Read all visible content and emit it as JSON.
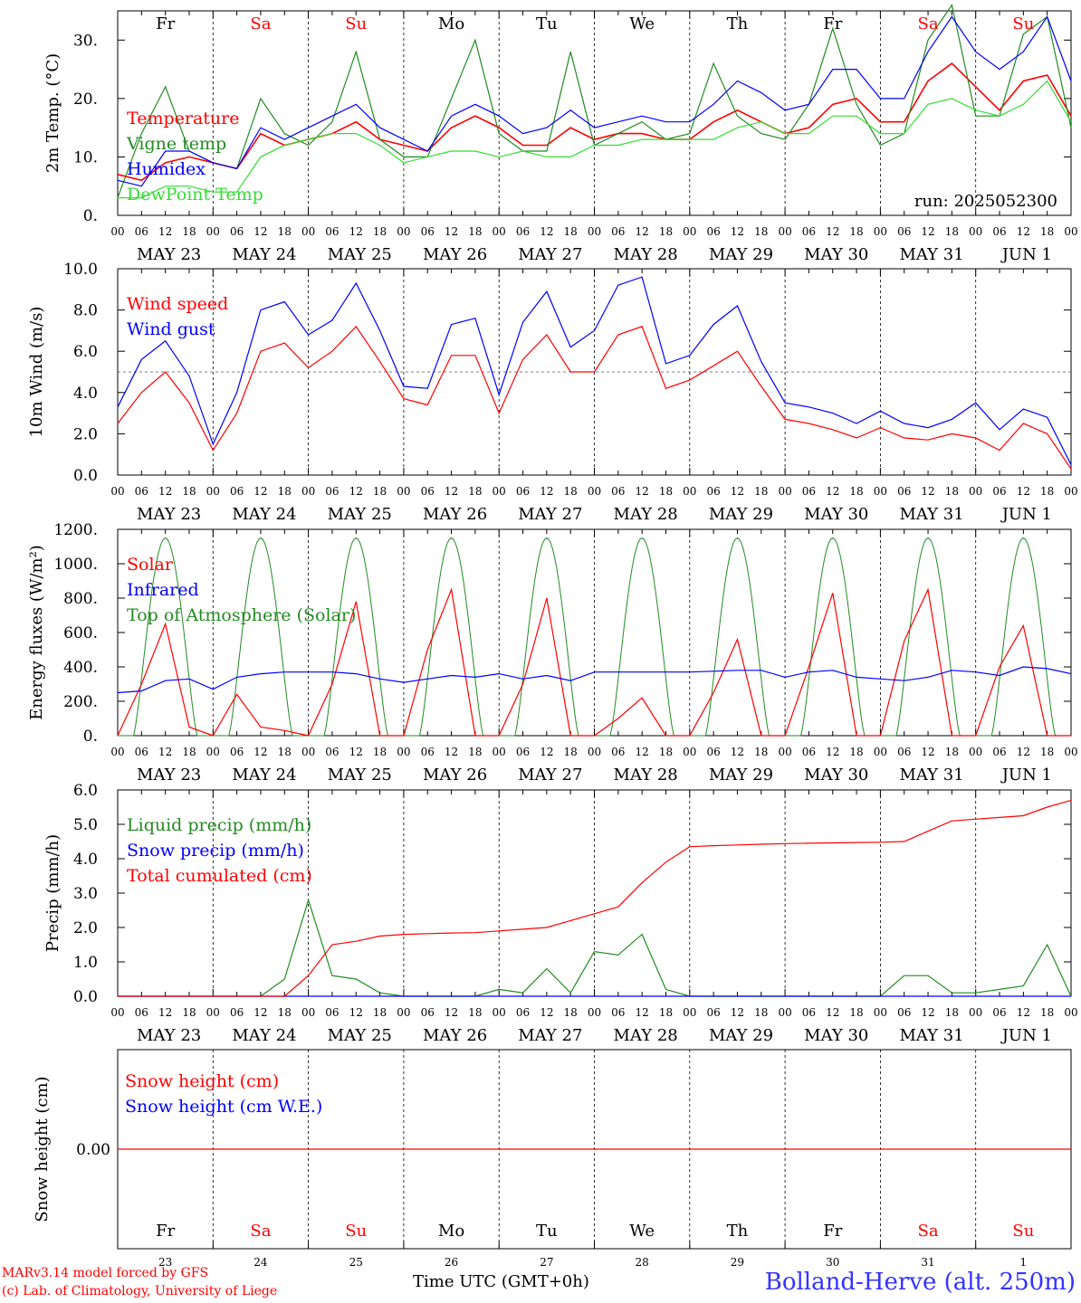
{
  "chart_data": [
    {
      "type": "line",
      "ylabel": "2m Temp. (°C)",
      "ylim": [
        0,
        35
      ],
      "yticks": [
        "0.",
        "10.",
        "20.",
        "30."
      ],
      "run_label": "run: 2025052300",
      "weekday_labels": [
        "Fr",
        "Sa",
        "Su",
        "Mo",
        "Tu",
        "We",
        "Th",
        "Fr",
        "Sa",
        "Su"
      ],
      "x_hours": [
        0,
        6,
        12,
        18,
        24,
        30,
        36,
        42,
        48,
        54,
        60,
        66,
        72,
        78,
        84,
        90,
        96,
        102,
        108,
        114,
        120,
        126,
        132,
        138,
        144,
        150,
        156,
        162,
        168,
        174,
        180,
        186,
        192,
        198,
        204,
        210,
        216,
        222,
        228,
        234,
        240
      ],
      "series": [
        {
          "name": "Temperature",
          "color": "#ff0000",
          "values": [
            7,
            6,
            9,
            10,
            9,
            8,
            14,
            12,
            13,
            14,
            16,
            13,
            12,
            11,
            15,
            17,
            15,
            12,
            12,
            15,
            13,
            14,
            14,
            13,
            13,
            16,
            18,
            16,
            14,
            15,
            19,
            20,
            16,
            16,
            23,
            26,
            22,
            18,
            23,
            24,
            17
          ]
        },
        {
          "name": "Vigne temp",
          "color": "#228b22",
          "values": [
            3,
            14,
            22,
            11,
            9,
            8,
            20,
            14,
            12,
            16,
            28,
            13,
            10,
            10,
            20,
            30,
            14,
            11,
            11,
            28,
            12,
            14,
            16,
            13,
            14,
            26,
            17,
            14,
            13,
            19,
            32,
            19,
            12,
            14,
            30,
            36,
            17,
            17,
            31,
            34,
            15
          ]
        },
        {
          "name": "Humidex",
          "color": "#0000ff",
          "values": [
            6,
            5,
            11,
            11,
            9,
            8,
            15,
            13,
            15,
            17,
            19,
            15,
            13,
            11,
            17,
            19,
            17,
            14,
            15,
            18,
            15,
            16,
            17,
            16,
            16,
            19,
            23,
            21,
            18,
            19,
            25,
            25,
            20,
            20,
            28,
            34,
            28,
            25,
            28,
            34,
            23
          ]
        },
        {
          "name": "DewPoint Temp",
          "color": "#33dd33",
          "values": [
            3,
            3,
            5,
            5,
            4,
            4,
            10,
            12,
            13,
            14,
            14,
            12,
            9,
            10,
            11,
            11,
            10,
            11,
            10,
            10,
            12,
            12,
            13,
            13,
            13,
            13,
            15,
            16,
            14,
            14,
            17,
            17,
            14,
            14,
            19,
            20,
            18,
            17,
            19,
            23,
            16
          ]
        }
      ]
    },
    {
      "type": "line",
      "ylabel": "10m Wind (m/s)",
      "ylim": [
        0,
        10
      ],
      "yticks": [
        "0.0",
        "2.0",
        "4.0",
        "6.0",
        "8.0",
        "10.0"
      ],
      "x_hours": [
        0,
        6,
        12,
        18,
        24,
        30,
        36,
        42,
        48,
        54,
        60,
        66,
        72,
        78,
        84,
        90,
        96,
        102,
        108,
        114,
        120,
        126,
        132,
        138,
        144,
        150,
        156,
        162,
        168,
        174,
        180,
        186,
        192,
        198,
        204,
        210,
        216,
        222,
        228,
        234,
        240
      ],
      "series": [
        {
          "name": "Wind speed",
          "color": "#ff0000",
          "values": [
            2.5,
            4,
            5,
            3.5,
            1.2,
            3,
            6,
            6.4,
            5.2,
            6,
            7.2,
            5.5,
            3.7,
            3.4,
            5.8,
            5.8,
            3,
            5.6,
            6.8,
            5,
            5,
            6.8,
            7.2,
            4.2,
            4.6,
            5.3,
            6,
            4.3,
            2.7,
            2.5,
            2.2,
            1.8,
            2.3,
            1.8,
            1.7,
            2,
            1.8,
            1.2,
            2.5,
            2,
            0.3
          ]
        },
        {
          "name": "Wind gust",
          "color": "#0000ff",
          "values": [
            3.3,
            5.6,
            6.5,
            4.8,
            1.5,
            4,
            8,
            8.4,
            6.8,
            7.5,
            9.3,
            7,
            4.3,
            4.2,
            7.3,
            7.6,
            3.9,
            7.4,
            8.9,
            6.2,
            7,
            9.2,
            9.6,
            5.4,
            5.8,
            7.3,
            8.2,
            5.5,
            3.5,
            3.3,
            3,
            2.5,
            3.1,
            2.5,
            2.3,
            2.7,
            3.5,
            2.2,
            3.2,
            2.8,
            0.5
          ]
        }
      ],
      "reference_line": 5
    },
    {
      "type": "line",
      "ylabel": "Energy fluxes (W/m²)",
      "ylim": [
        0,
        1200
      ],
      "yticks": [
        "0.",
        "200.",
        "400.",
        "600.",
        "800.",
        "1000.",
        "1200."
      ],
      "x_hours": [
        0,
        6,
        12,
        18,
        24,
        30,
        36,
        42,
        48,
        54,
        60,
        66,
        72,
        78,
        84,
        90,
        96,
        102,
        108,
        114,
        120,
        126,
        132,
        138,
        144,
        150,
        156,
        162,
        168,
        174,
        180,
        186,
        192,
        198,
        204,
        210,
        216,
        222,
        228,
        234,
        240
      ],
      "series": [
        {
          "name": "Solar",
          "color": "#ff0000",
          "values": [
            0,
            300,
            650,
            50,
            0,
            240,
            50,
            30,
            0,
            300,
            780,
            0,
            0,
            500,
            850,
            0,
            0,
            300,
            800,
            0,
            0,
            100,
            220,
            0,
            0,
            250,
            560,
            0,
            0,
            400,
            830,
            0,
            0,
            550,
            850,
            0,
            0,
            400,
            640,
            0,
            0
          ]
        },
        {
          "name": "Infrared",
          "color": "#0000ff",
          "values": [
            250,
            260,
            320,
            330,
            270,
            340,
            360,
            370,
            370,
            370,
            360,
            330,
            310,
            330,
            350,
            340,
            360,
            330,
            350,
            320,
            370,
            370,
            370,
            370,
            370,
            375,
            380,
            380,
            340,
            370,
            380,
            340,
            330,
            320,
            340,
            380,
            370,
            350,
            400,
            390,
            360
          ]
        },
        {
          "name": "Top of Atmosphere (Solar)",
          "color": "#228b22",
          "values": []
        }
      ]
    },
    {
      "type": "line",
      "ylabel": "Precip (mm/h)",
      "ylim": [
        0,
        6
      ],
      "yticks": [
        "0.0",
        "1.0",
        "2.0",
        "3.0",
        "4.0",
        "5.0",
        "6.0"
      ],
      "x_hours": [
        0,
        6,
        12,
        18,
        24,
        30,
        36,
        42,
        48,
        54,
        60,
        66,
        72,
        78,
        84,
        90,
        96,
        102,
        108,
        114,
        120,
        126,
        132,
        138,
        144,
        150,
        156,
        162,
        168,
        174,
        180,
        186,
        192,
        198,
        204,
        210,
        216,
        222,
        228,
        234,
        240
      ],
      "series": [
        {
          "name": "Liquid precip (mm/h)",
          "color": "#228b22",
          "values": [
            0,
            0,
            0,
            0,
            0,
            0,
            0,
            0.5,
            2.8,
            0.6,
            0.5,
            0.1,
            0,
            0,
            0,
            0,
            0.2,
            0.1,
            0.8,
            0.1,
            1.3,
            1.2,
            1.8,
            0.2,
            0,
            0,
            0,
            0,
            0,
            0,
            0,
            0,
            0,
            0.6,
            0.6,
            0.1,
            0.1,
            0.2,
            0.3,
            1.5,
            0
          ]
        },
        {
          "name": "Snow precip (mm/h)",
          "color": "#0000ff",
          "values": [
            0,
            0,
            0,
            0,
            0,
            0,
            0,
            0,
            0,
            0,
            0,
            0,
            0,
            0,
            0,
            0,
            0,
            0,
            0,
            0,
            0,
            0,
            0,
            0,
            0,
            0,
            0,
            0,
            0,
            0,
            0,
            0,
            0,
            0,
            0,
            0,
            0,
            0,
            0,
            0,
            0
          ]
        },
        {
          "name": "Total cumulated (cm)",
          "color": "#ff0000",
          "values": [
            0,
            0,
            0,
            0,
            0,
            0,
            0,
            0,
            0.6,
            1.5,
            1.6,
            1.75,
            1.8,
            1.82,
            1.84,
            1.85,
            1.9,
            1.95,
            2.0,
            2.2,
            2.4,
            2.6,
            3.3,
            3.9,
            4.35,
            4.38,
            4.4,
            4.42,
            4.44,
            4.45,
            4.46,
            4.47,
            4.48,
            4.5,
            4.8,
            5.1,
            5.15,
            5.2,
            5.25,
            5.5,
            5.7
          ]
        }
      ]
    },
    {
      "type": "line",
      "ylabel": "Snow height (cm)",
      "yticks": [
        "0.00"
      ],
      "weekday_labels": [
        "Fr",
        "Sa",
        "Su",
        "Mo",
        "Tu",
        "We",
        "Th",
        "Fr",
        "Sa",
        "Su"
      ],
      "day_numbers": [
        "23",
        "24",
        "25",
        "26",
        "27",
        "28",
        "29",
        "30",
        "31",
        "1"
      ],
      "series": [
        {
          "name": "Snow height (cm)",
          "color": "#ff0000",
          "values": [
            0,
            0
          ]
        },
        {
          "name": "Snow height (cm W.E.)",
          "color": "#0000ff",
          "values": []
        }
      ]
    }
  ],
  "x_axis": {
    "hour_ticks": [
      "00",
      "06",
      "12",
      "18"
    ],
    "day_labels": [
      "MAY 23",
      "MAY 24",
      "MAY 25",
      "MAY 26",
      "MAY 27",
      "MAY 28",
      "MAY 29",
      "MAY 30",
      "MAY 31",
      "JUN  1"
    ],
    "title": "Time UTC (GMT+0h)",
    "weekend_color": "#ff0000"
  },
  "footer": {
    "credit_line1": "MARv3.14 model forced by GFS",
    "credit_line2": "(c) Lab. of Climatology, University of Liege",
    "station": "Bolland-Herve (alt. 250m)"
  }
}
